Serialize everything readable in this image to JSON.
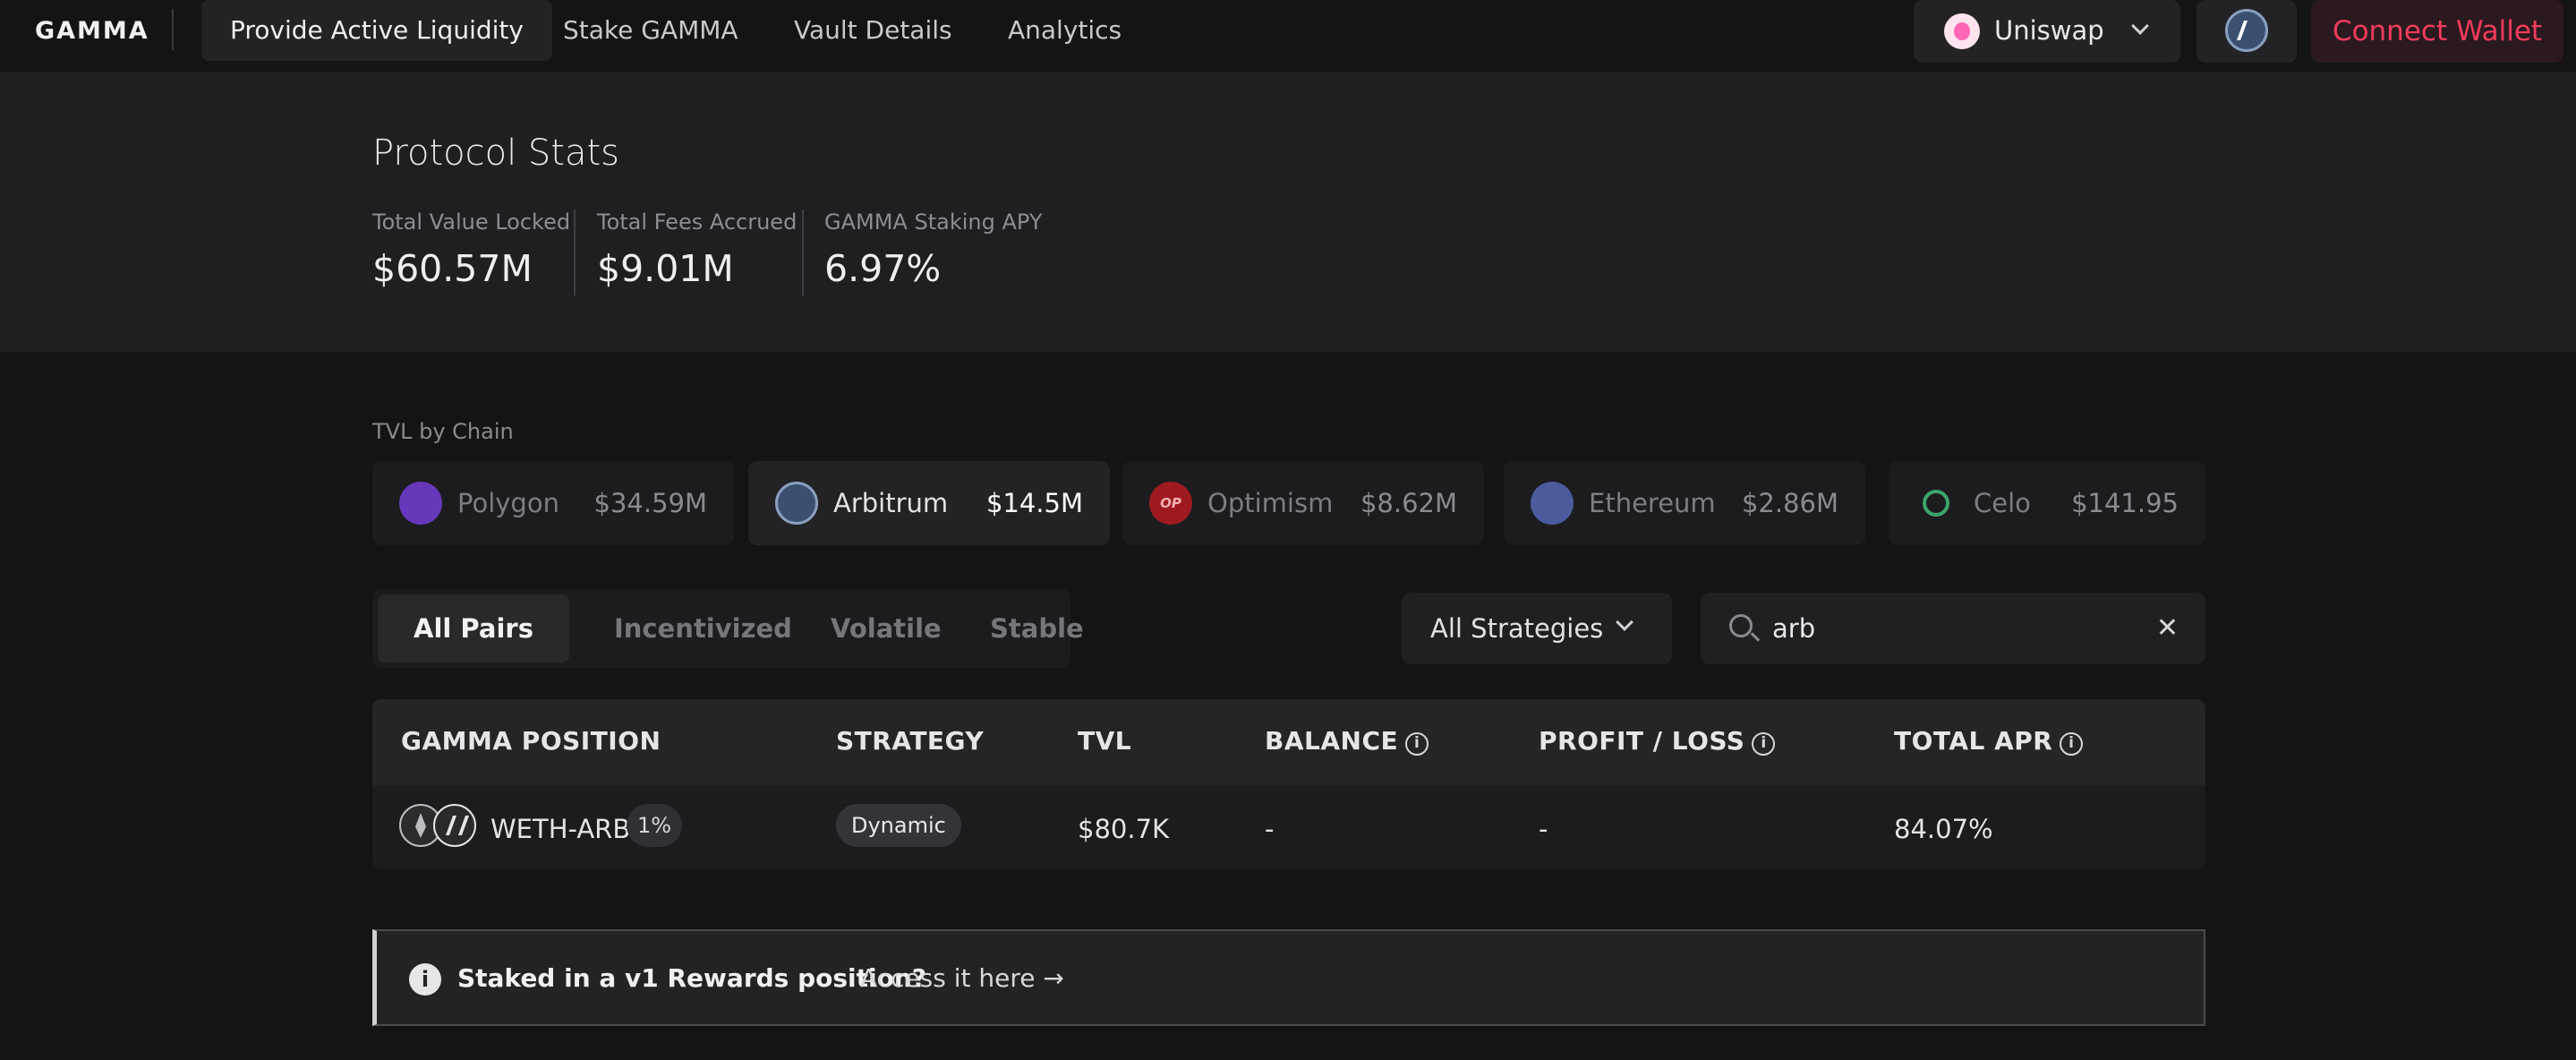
{
  "nav": {
    "logo": "GAMMA",
    "links": [
      "Provide Active Liquidity",
      "Stake GAMMA",
      "Vault Details",
      "Analytics"
    ],
    "dex": "Uniswap",
    "connect": "Connect Wallet"
  },
  "stats": {
    "title": "Protocol Stats",
    "items": [
      {
        "label": "Total Value Locked",
        "value": "$60.57M"
      },
      {
        "label": "Total Fees Accrued",
        "value": "$9.01M"
      },
      {
        "label": "GAMMA Staking APY",
        "value": "6.97%"
      }
    ]
  },
  "tvl": {
    "label": "TVL by Chain",
    "chains": [
      {
        "name": "Polygon",
        "value": "$34.59M",
        "color": "#7b3fe4"
      },
      {
        "name": "Arbitrum",
        "value": "$14.5M",
        "color": "#3b4f70"
      },
      {
        "name": "Optimism",
        "value": "$8.62M",
        "color": "#d11f26"
      },
      {
        "name": "Ethereum",
        "value": "$2.86M",
        "color": "#5d6fb8"
      },
      {
        "name": "Celo",
        "value": "$141.95",
        "color": "#35d07f"
      }
    ]
  },
  "filters": {
    "tabs": [
      "All Pairs",
      "Incentivized",
      "Volatile",
      "Stable"
    ],
    "strategy": "All Strategies",
    "search_value": "arb",
    "clear": "✕"
  },
  "table": {
    "headers": [
      "GAMMA POSITION",
      "STRATEGY",
      "TVL",
      "BALANCE",
      "PROFIT / LOSS",
      "TOTAL APR"
    ],
    "rows": [
      {
        "pair": "WETH-ARB",
        "fee": "1%",
        "strategy": "Dynamic",
        "tvl": "$80.7K",
        "balance": "-",
        "pnl": "-",
        "apr": "84.07%"
      }
    ]
  },
  "notice": {
    "icon": "i",
    "text": "Staked in a v1 Rewards position?",
    "link": "Access it here →"
  },
  "info_icon": "i"
}
